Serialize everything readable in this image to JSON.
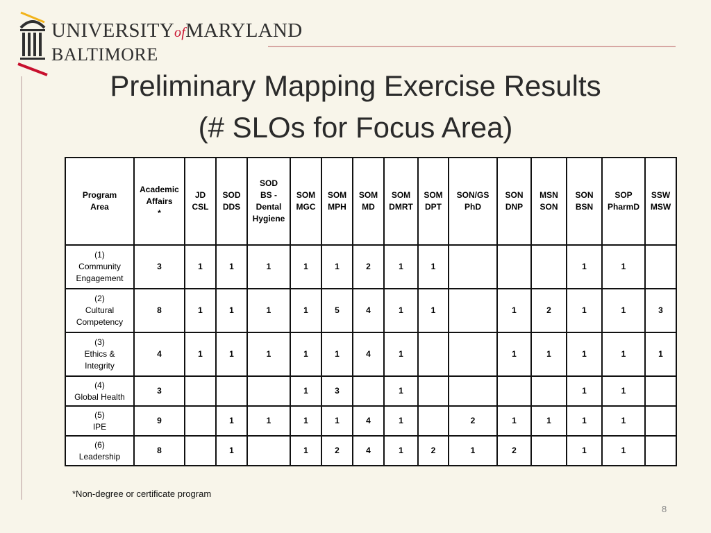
{
  "logo": {
    "line1_pre": "UNIVERSITY",
    "line1_of": "of",
    "line1_post": "MARYLAND",
    "line2": "BALTIMORE",
    "accent_color": "#c8102e",
    "icon": "dome-columns-icon"
  },
  "title": {
    "line1": "Preliminary Mapping Exercise Results",
    "line2": "(# SLOs for Focus Area)"
  },
  "table": {
    "headers": [
      [
        "Program",
        "Area"
      ],
      [
        "Academic",
        "Affairs",
        "*"
      ],
      [
        "JD",
        "CSL"
      ],
      [
        "SOD",
        "DDS"
      ],
      [
        "SOD",
        "BS -",
        "Dental",
        "Hygiene"
      ],
      [
        "SOM",
        "MGC"
      ],
      [
        "SOM",
        "MPH"
      ],
      [
        "SOM",
        "MD"
      ],
      [
        "SOM",
        "DMRT"
      ],
      [
        "SOM",
        "DPT"
      ],
      [
        "SON/GS",
        "PhD"
      ],
      [
        "SON",
        "DNP"
      ],
      [
        "MSN",
        "SON"
      ],
      [
        "SON",
        "BSN"
      ],
      [
        "SOP",
        "PharmD"
      ],
      [
        "SSW",
        "MSW"
      ]
    ],
    "rows": [
      {
        "area": [
          "(1)",
          "Community",
          "Engagement"
        ],
        "values": [
          "3",
          "1",
          "1",
          "1",
          "1",
          "1",
          "2",
          "1",
          "1",
          "",
          "",
          "",
          "1",
          "1",
          ""
        ]
      },
      {
        "area": [
          "(2)",
          "Cultural",
          "Competency"
        ],
        "values": [
          "8",
          "1",
          "1",
          "1",
          "1",
          "5",
          "4",
          "1",
          "1",
          "",
          "1",
          "2",
          "1",
          "1",
          "3"
        ]
      },
      {
        "area": [
          "(3)",
          "Ethics &",
          "Integrity"
        ],
        "values": [
          "4",
          "1",
          "1",
          "1",
          "1",
          "1",
          "4",
          "1",
          "",
          "",
          "1",
          "1",
          "1",
          "1",
          "1"
        ]
      },
      {
        "area": [
          "(4)",
          "Global Health"
        ],
        "values": [
          "3",
          "",
          "",
          "",
          "1",
          "3",
          "",
          "1",
          "",
          "",
          "",
          "",
          "1",
          "1",
          ""
        ]
      },
      {
        "area": [
          "(5)",
          "IPE"
        ],
        "values": [
          "9",
          "",
          "1",
          "1",
          "1",
          "1",
          "4",
          "1",
          "",
          "2",
          "1",
          "1",
          "1",
          "1",
          ""
        ]
      },
      {
        "area": [
          "(6)",
          "Leadership"
        ],
        "values": [
          "8",
          "",
          "1",
          "",
          "1",
          "2",
          "4",
          "1",
          "2",
          "1",
          "2",
          "",
          "1",
          "1",
          ""
        ]
      }
    ]
  },
  "footnote": "*Non-degree or certificate program",
  "page_number": "8"
}
